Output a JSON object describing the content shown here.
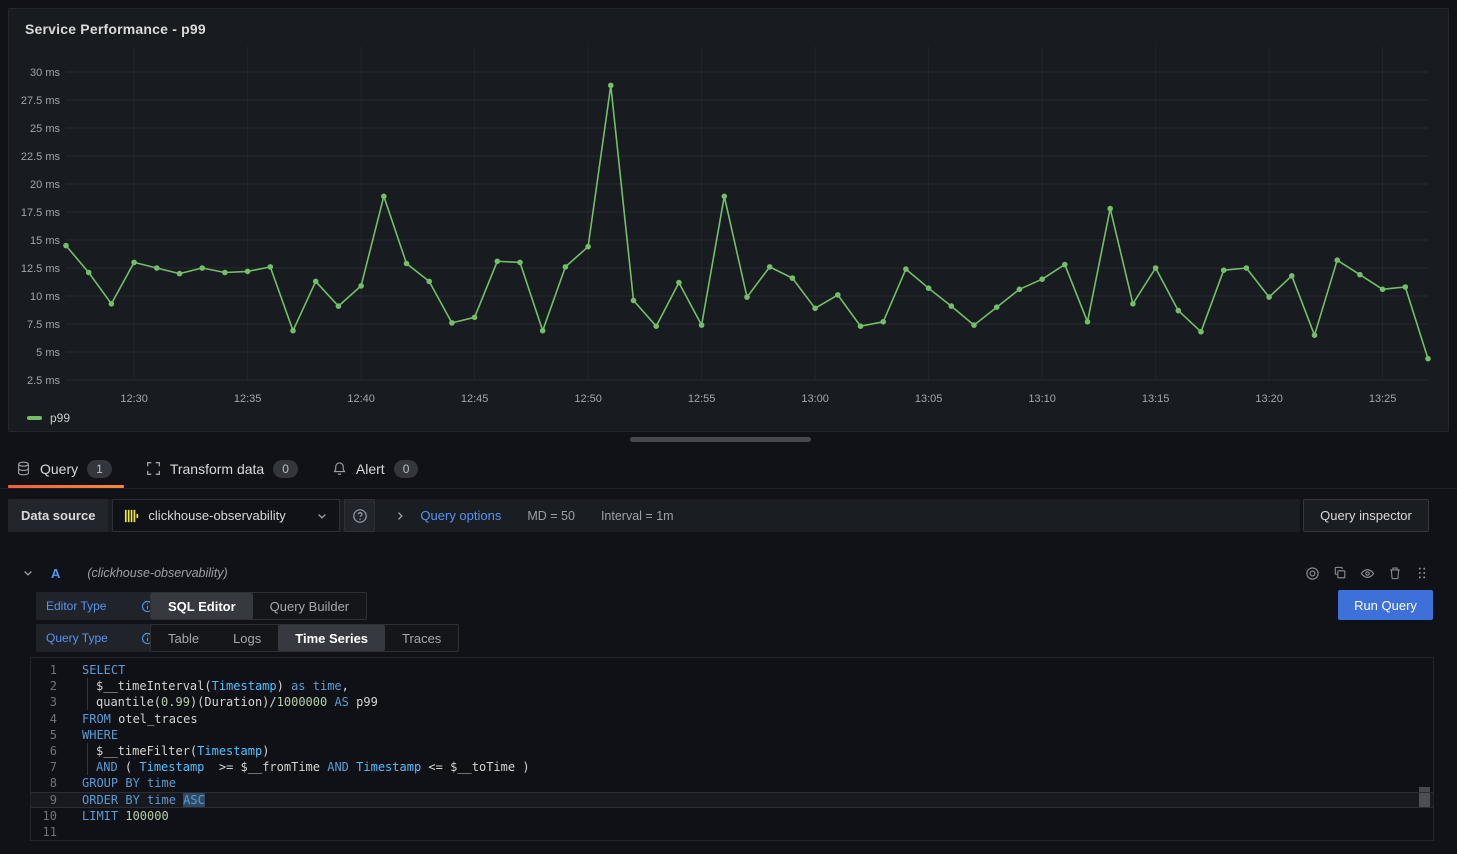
{
  "panel": {
    "title": "Service Performance - p99",
    "legend": "p99"
  },
  "chart_data": {
    "type": "line",
    "title": "Service Performance - p99",
    "ylabel": "",
    "xlabel": "",
    "y_unit": "ms",
    "ylim": [
      2.0,
      32.5
    ],
    "grid": true,
    "legend_position": "bottom-left",
    "y_ticks": [
      2.5,
      5,
      7.5,
      10,
      12.5,
      15,
      17.5,
      20,
      22.5,
      25,
      27.5,
      30
    ],
    "x_labels": [
      "12:27",
      "12:28",
      "12:29",
      "12:30",
      "12:31",
      "12:32",
      "12:33",
      "12:34",
      "12:35",
      "12:36",
      "12:37",
      "12:38",
      "12:39",
      "12:40",
      "12:41",
      "12:42",
      "12:43",
      "12:44",
      "12:45",
      "12:46",
      "12:47",
      "12:48",
      "12:49",
      "12:50",
      "12:51",
      "12:52",
      "12:53",
      "12:54",
      "12:55",
      "12:56",
      "12:57",
      "12:58",
      "12:59",
      "13:00",
      "13:01",
      "13:02",
      "13:03",
      "13:04",
      "13:05",
      "13:06",
      "13:07",
      "13:08",
      "13:09",
      "13:10",
      "13:11",
      "13:12",
      "13:13",
      "13:14",
      "13:15",
      "13:16",
      "13:17",
      "13:18",
      "13:19",
      "13:20",
      "13:21",
      "13:22",
      "13:23",
      "13:24",
      "13:25",
      "13:26",
      "13:27"
    ],
    "x_ticks": [
      {
        "i": 3,
        "label": "12:30"
      },
      {
        "i": 8,
        "label": "12:35"
      },
      {
        "i": 13,
        "label": "12:40"
      },
      {
        "i": 18,
        "label": "12:45"
      },
      {
        "i": 23,
        "label": "12:50"
      },
      {
        "i": 28,
        "label": "12:55"
      },
      {
        "i": 33,
        "label": "13:00"
      },
      {
        "i": 38,
        "label": "13:05"
      },
      {
        "i": 43,
        "label": "13:10"
      },
      {
        "i": 48,
        "label": "13:15"
      },
      {
        "i": 53,
        "label": "13:20"
      },
      {
        "i": 58,
        "label": "13:25"
      }
    ],
    "series": [
      {
        "name": "p99",
        "color": "#73BF69",
        "values": [
          14.5,
          12.1,
          9.3,
          13.0,
          12.5,
          12.0,
          12.5,
          12.1,
          12.2,
          12.6,
          6.9,
          11.3,
          9.1,
          10.9,
          18.9,
          12.9,
          11.3,
          7.6,
          8.1,
          13.1,
          13.0,
          6.9,
          12.6,
          14.4,
          28.8,
          9.6,
          7.3,
          11.2,
          7.4,
          18.9,
          9.9,
          12.6,
          11.6,
          8.9,
          10.1,
          7.3,
          7.7,
          12.4,
          10.7,
          9.1,
          7.4,
          9.0,
          10.6,
          11.5,
          12.8,
          7.7,
          17.8,
          9.3,
          12.5,
          8.7,
          6.8,
          12.3,
          12.5,
          9.9,
          11.8,
          6.5,
          13.2,
          11.9,
          10.6,
          10.8,
          4.4
        ]
      }
    ]
  },
  "tabs": {
    "items": [
      {
        "label": "Query",
        "count": "1",
        "icon": "database-icon",
        "active": true
      },
      {
        "label": "Transform data",
        "count": "0",
        "icon": "process-icon",
        "active": false
      },
      {
        "label": "Alert",
        "count": "0",
        "icon": "bell-icon",
        "active": false
      }
    ]
  },
  "toolbar": {
    "datasource_label": "Data source",
    "datasource_value": "clickhouse-observability",
    "query_options_label": "Query options",
    "max_data_points": "MD = 50",
    "interval": "Interval = 1m",
    "inspector_label": "Query inspector"
  },
  "query_row": {
    "ref_id": "A",
    "datasource_hint": "(clickhouse-observability)",
    "actions": [
      "concentric-circles-icon",
      "copy-icon",
      "eye-icon",
      "trash-icon",
      "drag-handle-icon"
    ]
  },
  "editor": {
    "editor_type_label": "Editor Type",
    "query_type_label": "Query Type",
    "editor_type": {
      "options": [
        "SQL Editor",
        "Query Builder"
      ],
      "active": 0
    },
    "query_type": {
      "options": [
        "Table",
        "Logs",
        "Time Series",
        "Traces"
      ],
      "active": 2
    },
    "run_label": "Run Query"
  },
  "sql": {
    "lines": [
      {
        "num": "1",
        "indent": false,
        "current": false,
        "tokens": [
          {
            "text": "SELECT",
            "type": "kw"
          }
        ]
      },
      {
        "num": "2",
        "indent": true,
        "current": false,
        "tokens": [
          {
            "text": "$__timeInterval(",
            "type": "pl"
          },
          {
            "text": "Timestamp",
            "type": "id"
          },
          {
            "text": ") ",
            "type": "pl"
          },
          {
            "text": "as time",
            "type": "kw"
          },
          {
            "text": ",",
            "type": "pl"
          }
        ]
      },
      {
        "num": "3",
        "indent": true,
        "current": false,
        "tokens": [
          {
            "text": "quantile(",
            "type": "pl"
          },
          {
            "text": "0.99",
            "type": "num"
          },
          {
            "text": ")(Duration)/",
            "type": "pl"
          },
          {
            "text": "1000000",
            "type": "num"
          },
          {
            "text": " ",
            "type": "pl"
          },
          {
            "text": "AS",
            "type": "kw"
          },
          {
            "text": " p99",
            "type": "pl"
          }
        ]
      },
      {
        "num": "4",
        "indent": false,
        "current": false,
        "tokens": [
          {
            "text": "FROM",
            "type": "kw"
          },
          {
            "text": " otel_traces",
            "type": "pl"
          }
        ]
      },
      {
        "num": "5",
        "indent": false,
        "current": false,
        "tokens": [
          {
            "text": "WHERE",
            "type": "kw"
          }
        ]
      },
      {
        "num": "6",
        "indent": true,
        "current": false,
        "tokens": [
          {
            "text": "$__timeFilter(",
            "type": "pl"
          },
          {
            "text": "Timestamp",
            "type": "id"
          },
          {
            "text": ")",
            "type": "pl"
          }
        ]
      },
      {
        "num": "7",
        "indent": true,
        "current": false,
        "tokens": [
          {
            "text": "AND",
            "type": "kw"
          },
          {
            "text": " ( ",
            "type": "pl"
          },
          {
            "text": "Timestamp",
            "type": "id"
          },
          {
            "text": "  >= $__fromTime ",
            "type": "pl"
          },
          {
            "text": "AND",
            "type": "kw"
          },
          {
            "text": " ",
            "type": "pl"
          },
          {
            "text": "Timestamp",
            "type": "id"
          },
          {
            "text": " <= $__toTime )",
            "type": "pl"
          }
        ]
      },
      {
        "num": "8",
        "indent": false,
        "current": false,
        "tokens": [
          {
            "text": "GROUP BY",
            "type": "kw"
          },
          {
            "text": " ",
            "type": "pl"
          },
          {
            "text": "time",
            "type": "kw"
          }
        ]
      },
      {
        "num": "9",
        "indent": false,
        "current": true,
        "tokens": [
          {
            "text": "ORDER BY",
            "type": "kw"
          },
          {
            "text": " ",
            "type": "pl"
          },
          {
            "text": "time",
            "type": "kw"
          },
          {
            "text": " ",
            "type": "pl"
          },
          {
            "text": "ASC",
            "type": "kw",
            "sel": true
          }
        ]
      },
      {
        "num": "10",
        "indent": false,
        "current": false,
        "tokens": [
          {
            "text": "LIMIT",
            "type": "kw"
          },
          {
            "text": " ",
            "type": "pl"
          },
          {
            "text": "100000",
            "type": "num"
          }
        ]
      },
      {
        "num": "11",
        "indent": false,
        "current": false,
        "tokens": []
      }
    ]
  },
  "colors": {
    "series_green": "#73BF69",
    "link_blue": "#5794f2",
    "run_button_blue": "#3d71d9",
    "tab_accent_gradient": [
      "#F55F3E",
      "#FF8833"
    ],
    "clickhouse_yellow": "#EDE94B"
  }
}
